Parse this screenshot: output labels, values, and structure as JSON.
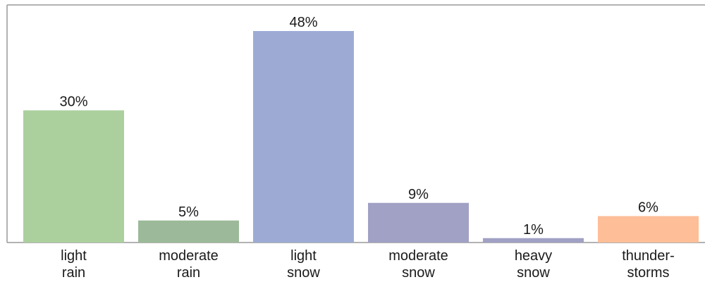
{
  "chart_data": {
    "type": "bar",
    "categories": [
      [
        "light",
        "rain"
      ],
      [
        "moderate",
        "rain"
      ],
      [
        "light",
        "snow"
      ],
      [
        "moderate",
        "snow"
      ],
      [
        "heavy",
        "snow"
      ],
      [
        "thunder-",
        "storms"
      ]
    ],
    "values": [
      30,
      5,
      48,
      9,
      1,
      6
    ],
    "value_labels": [
      "30%",
      "5%",
      "48%",
      "9%",
      "1%",
      "6%"
    ],
    "ylim": [
      0,
      48
    ],
    "grid": false,
    "colors": [
      "#abd09d",
      "#9cba99",
      "#9dabd4",
      "#a1a1c5",
      "#a1a1c5",
      "#fdbe98"
    ],
    "frame_color": "#999999"
  }
}
